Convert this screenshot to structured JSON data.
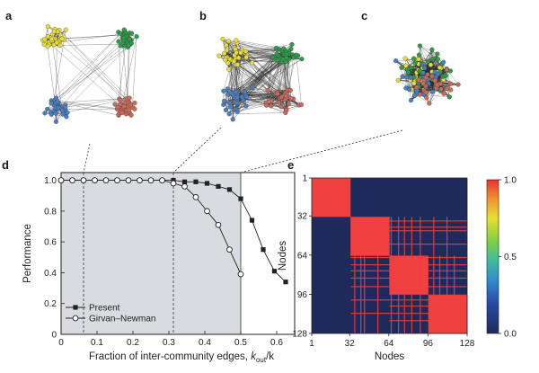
{
  "panels": {
    "a": {
      "label": "a",
      "description": "four separated communities"
    },
    "b": {
      "label": "b",
      "description": "communities partially mixed"
    },
    "c": {
      "label": "c",
      "description": "communities fully mixed"
    },
    "d": {
      "label": "d"
    },
    "e": {
      "label": "e"
    }
  },
  "colors": {
    "yellow": "#e8dc3a",
    "green": "#2f9a4a",
    "blue": "#4a7fc1",
    "red": "#c96a5a",
    "shade": "#d9dbe0",
    "heat_bg": "#1f2a5c",
    "heat_hot": "#f04040"
  },
  "chart_data": [
    {
      "type": "line",
      "panel": "d",
      "xlabel_prefix": "Fraction of inter-community edges, ",
      "xlabel_var": "k",
      "xlabel_sub": "out",
      "xlabel_suffix": "/k",
      "ylabel": "Performance",
      "xlim": [
        0,
        0.65
      ],
      "ylim": [
        0,
        1.05
      ],
      "xticks": [
        "0",
        "0.1",
        "0.2",
        "0.3",
        "0.4",
        "0.5",
        "0.6"
      ],
      "xtick_values": [
        0,
        0.1,
        0.2,
        0.3,
        0.4,
        0.5,
        0.6
      ],
      "yticks": [
        "0",
        "0.2",
        "0.4",
        "0.6",
        "0.8",
        "1.0"
      ],
      "ytick_values": [
        0,
        0.2,
        0.4,
        0.6,
        0.8,
        1.0
      ],
      "shaded_region": [
        0,
        0.5
      ],
      "dashed_verticals": [
        0.0625,
        0.3125
      ],
      "series": [
        {
          "name": "Present",
          "marker": "filled-square",
          "x": [
            0,
            0.0313,
            0.0625,
            0.0938,
            0.125,
            0.1563,
            0.1875,
            0.2188,
            0.25,
            0.2813,
            0.3125,
            0.3438,
            0.375,
            0.4063,
            0.4375,
            0.4688,
            0.5,
            0.5313,
            0.5625,
            0.5938,
            0.625
          ],
          "values": [
            1.0,
            1.0,
            1.0,
            1.0,
            1.0,
            1.0,
            1.0,
            1.0,
            1.0,
            1.0,
            1.0,
            0.99,
            0.99,
            0.98,
            0.96,
            0.94,
            0.88,
            0.74,
            0.55,
            0.41,
            0.34
          ]
        },
        {
          "name": "Girvan–Newman",
          "marker": "open-circle",
          "x": [
            0,
            0.0313,
            0.0625,
            0.0938,
            0.125,
            0.1563,
            0.1875,
            0.2188,
            0.25,
            0.2813,
            0.3125,
            0.3438,
            0.375,
            0.4063,
            0.4375,
            0.4688,
            0.5
          ],
          "values": [
            1.0,
            1.0,
            1.0,
            1.0,
            1.0,
            1.0,
            1.0,
            1.0,
            1.0,
            1.0,
            0.98,
            0.96,
            0.89,
            0.8,
            0.71,
            0.55,
            0.39
          ]
        }
      ]
    },
    {
      "type": "heatmap",
      "panel": "e",
      "xlabel": "Nodes",
      "ylabel": "Nodes",
      "range": [
        1,
        128
      ],
      "xticks": [
        "1",
        "32",
        "64",
        "96",
        "128"
      ],
      "yticks": [
        "1",
        "32",
        "64",
        "96",
        "128"
      ],
      "tick_values": [
        1,
        32,
        64,
        96,
        128
      ],
      "blocks": [
        [
          1,
          32
        ],
        [
          33,
          64
        ],
        [
          65,
          96
        ],
        [
          97,
          128
        ]
      ],
      "colorbar": {
        "min": 0.0,
        "max": 1.0,
        "ticks": [
          "1.0",
          "0.5",
          "0.0"
        ],
        "tick_values": [
          1.0,
          0.5,
          0.0
        ]
      }
    }
  ]
}
